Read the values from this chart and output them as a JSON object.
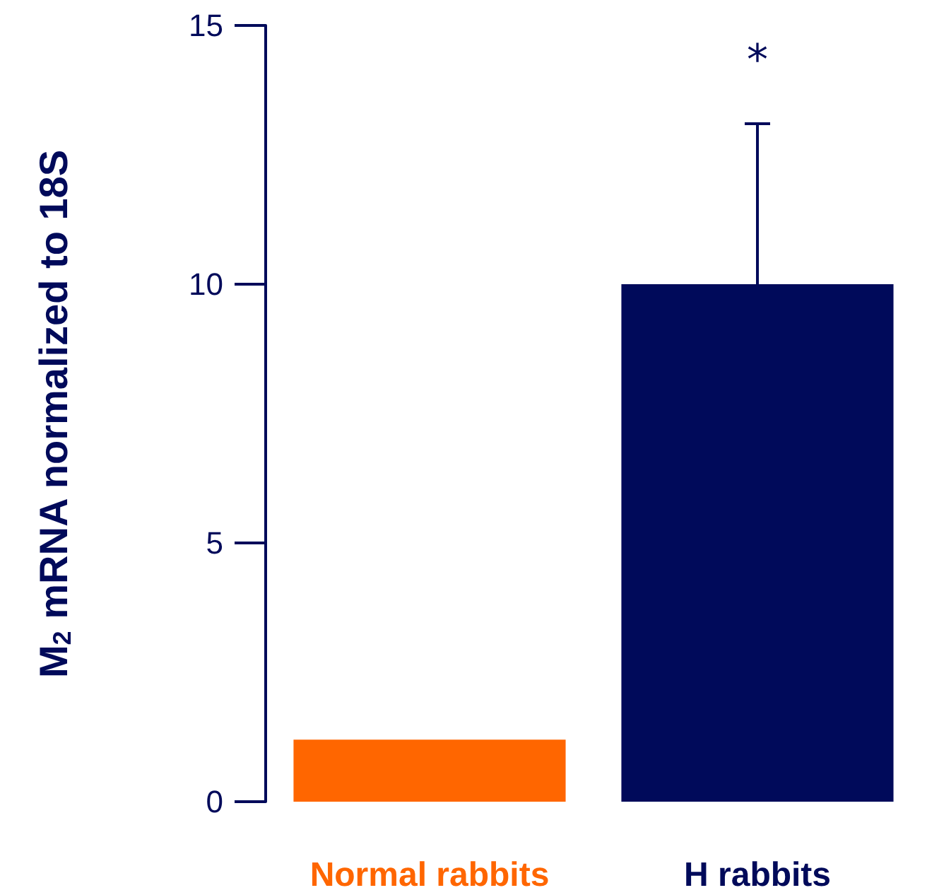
{
  "chart_data": {
    "type": "bar",
    "ylabel": "M$_{2}$ mRNA normalized to 18S",
    "categories": [
      "Normal rabbits",
      "H rabbits"
    ],
    "values": [
      1.2,
      10
    ],
    "colors": [
      "#ff6600",
      "#000a5a"
    ],
    "errors": [
      null,
      [
        10,
        13.1
      ]
    ],
    "annotations": [
      "*"
    ],
    "ylim": [
      0,
      15
    ],
    "yticks": [
      0,
      5,
      10,
      15
    ],
    "grid": false
  }
}
